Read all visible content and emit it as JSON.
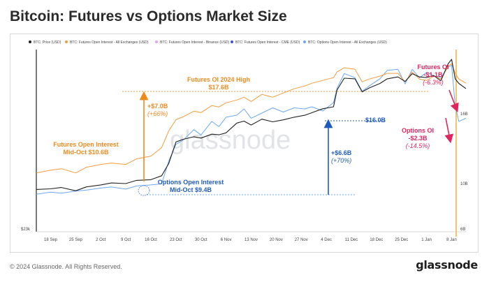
{
  "title": "Bitcoin: Futures vs Options Market Size",
  "footer": "© 2024 Glassnode. All Rights Reserved.",
  "logo_text": "glassnode",
  "watermark": "glassnode",
  "colors": {
    "price": "#222222",
    "futures_oi": "#f39c3c",
    "futures_binance": "#d9a8f0",
    "futures_cme": "#3b4fd6",
    "options_oi": "#6aa8ef",
    "annot_orange": "#ef8a1e",
    "annot_blue": "#1f5bbf",
    "annot_red": "#e0245e",
    "vline": "#f1b13c"
  },
  "chart_data": {
    "type": "line",
    "legend": [
      "BTC: Price (USD)",
      "BTC: Futures Open Interest - All Exchanges (USD)",
      "BTC: Futures Open Interest - Binance (USD)",
      "BTC: Futures Open Interest - CME (USD)",
      "BTC: Options Open Interest - All Exchanges (USD)"
    ],
    "x_ticks": [
      "18 Sep",
      "25 Sep",
      "2 Oct",
      "9 Oct",
      "16 Oct",
      "23 Oct",
      "30 Oct",
      "6 Nov",
      "13 Nov",
      "20 Nov",
      "27 Nov",
      "4 Dec",
      "11 Dec",
      "18 Dec",
      "25 Dec",
      "1 Jan",
      "8 Jan"
    ],
    "y_left_tick": "$23k",
    "y_right_ticks": [
      "16B",
      "10B",
      "6B"
    ],
    "x_start_day": -4,
    "x_end_day": 116,
    "series": [
      {
        "name": "BTC: Price (USD)",
        "color": "#222222",
        "points": [
          [
            -4,
            26.5
          ],
          [
            0,
            26.6
          ],
          [
            3,
            26.8
          ],
          [
            7,
            26.3
          ],
          [
            10,
            26.9
          ],
          [
            14,
            27.2
          ],
          [
            17,
            27.5
          ],
          [
            21,
            27.4
          ],
          [
            24,
            27.9
          ],
          [
            28,
            28.0
          ],
          [
            31,
            28.6
          ],
          [
            33,
            30.5
          ],
          [
            35,
            33.8
          ],
          [
            37,
            34.2
          ],
          [
            40,
            34.6
          ],
          [
            42,
            34.4
          ],
          [
            45,
            35.0
          ],
          [
            47,
            34.9
          ],
          [
            49,
            35.2
          ],
          [
            52,
            36.7
          ],
          [
            54,
            37.0
          ],
          [
            56,
            36.4
          ],
          [
            59,
            37.3
          ],
          [
            62,
            36.9
          ],
          [
            65,
            37.2
          ],
          [
            68,
            37.6
          ],
          [
            71,
            37.9
          ],
          [
            73,
            38.3
          ],
          [
            76,
            38.9
          ],
          [
            79,
            39.2
          ],
          [
            80,
            41.8
          ],
          [
            82,
            43.6
          ],
          [
            85,
            43.5
          ],
          [
            87,
            41.5
          ],
          [
            89,
            42.1
          ],
          [
            92,
            42.8
          ],
          [
            94,
            43.5
          ],
          [
            97,
            43.8
          ],
          [
            99,
            43.1
          ],
          [
            101,
            44.3
          ],
          [
            103,
            43.8
          ],
          [
            105,
            43.7
          ],
          [
            107,
            44.0
          ],
          [
            109,
            43.2
          ],
          [
            111,
            45.8
          ],
          [
            112,
            46.5
          ],
          [
            113,
            43.5
          ],
          [
            114,
            42.8
          ],
          [
            116,
            42.0
          ]
        ]
      },
      {
        "name": "BTC: Futures Open Interest - All Exchanges (USD)",
        "color": "#f39c3c",
        "points": [
          [
            -4,
            10.2
          ],
          [
            0,
            10.4
          ],
          [
            3,
            10.5
          ],
          [
            7,
            10.2
          ],
          [
            10,
            10.6
          ],
          [
            14,
            10.8
          ],
          [
            17,
            10.9
          ],
          [
            21,
            10.8
          ],
          [
            24,
            11.2
          ],
          [
            28,
            11.4
          ],
          [
            31,
            12.0
          ],
          [
            33,
            13.2
          ],
          [
            35,
            14.0
          ],
          [
            37,
            14.2
          ],
          [
            40,
            14.6
          ],
          [
            42,
            14.5
          ],
          [
            45,
            15.0
          ],
          [
            47,
            14.9
          ],
          [
            49,
            15.2
          ],
          [
            52,
            15.4
          ],
          [
            54,
            15.6
          ],
          [
            56,
            15.3
          ],
          [
            59,
            15.8
          ],
          [
            62,
            15.6
          ],
          [
            65,
            15.9
          ],
          [
            68,
            16.2
          ],
          [
            71,
            16.4
          ],
          [
            73,
            16.6
          ],
          [
            76,
            16.8
          ],
          [
            79,
            17.0
          ],
          [
            80,
            17.4
          ],
          [
            82,
            17.7
          ],
          [
            85,
            17.6
          ],
          [
            87,
            16.7
          ],
          [
            89,
            16.9
          ],
          [
            92,
            17.1
          ],
          [
            94,
            17.3
          ],
          [
            97,
            17.3
          ],
          [
            99,
            16.7
          ],
          [
            101,
            17.4
          ],
          [
            103,
            16.9
          ],
          [
            105,
            16.8
          ],
          [
            107,
            17.1
          ],
          [
            109,
            16.9
          ],
          [
            111,
            17.8
          ],
          [
            112,
            18.0
          ],
          [
            113,
            17.3
          ],
          [
            114,
            16.9
          ],
          [
            116,
            16.6
          ]
        ]
      },
      {
        "name": "BTC: Options Open Interest - All Exchanges (USD)",
        "color": "#6aa8ef",
        "points": [
          [
            -4,
            8.6
          ],
          [
            0,
            8.8
          ],
          [
            3,
            8.7
          ],
          [
            7,
            8.9
          ],
          [
            10,
            9.0
          ],
          [
            14,
            9.2
          ],
          [
            17,
            9.3
          ],
          [
            21,
            9.1
          ],
          [
            24,
            9.4
          ],
          [
            28,
            9.5
          ],
          [
            31,
            9.6
          ],
          [
            33,
            11.8
          ],
          [
            35,
            13.4
          ],
          [
            37,
            13.8
          ],
          [
            40,
            14.8
          ],
          [
            42,
            14.3
          ],
          [
            45,
            15.6
          ],
          [
            47,
            15.1
          ],
          [
            49,
            16.0
          ],
          [
            52,
            16.2
          ],
          [
            54,
            16.8
          ],
          [
            56,
            15.9
          ],
          [
            59,
            16.4
          ],
          [
            62,
            16.9
          ],
          [
            65,
            16.5
          ],
          [
            68,
            16.9
          ],
          [
            71,
            16.8
          ],
          [
            73,
            17.0
          ],
          [
            76,
            16.6
          ],
          [
            79,
            17.4
          ],
          [
            80,
            18.8
          ],
          [
            82,
            20.2
          ],
          [
            85,
            19.8
          ],
          [
            87,
            18.5
          ],
          [
            89,
            19.0
          ],
          [
            92,
            19.7
          ],
          [
            94,
            20.5
          ],
          [
            97,
            20.6
          ],
          [
            99,
            19.2
          ],
          [
            101,
            20.6
          ],
          [
            103,
            19.8
          ],
          [
            105,
            20.3
          ],
          [
            107,
            20.0
          ],
          [
            109,
            19.8
          ],
          [
            111,
            20.8
          ],
          [
            112,
            21.0
          ],
          [
            113,
            17.1
          ],
          [
            114,
            15.6
          ],
          [
            116,
            15.9
          ]
        ]
      }
    ],
    "annotations": [
      {
        "id": "futures_high",
        "lines": [
          "Futures OI 2024 High",
          "$17.6B"
        ],
        "color": "#ef8a1e"
      },
      {
        "id": "futures_change",
        "lines": [
          "+$7.0B",
          "(+66%)"
        ],
        "color": "#ef8a1e"
      },
      {
        "id": "futures_midoct",
        "lines": [
          "Futures Open Interest",
          "Mid-Oct $10.6B"
        ],
        "color": "#ef8a1e"
      },
      {
        "id": "options_midoct",
        "lines": [
          "Options Open Interest",
          "Mid-Oct $9.4B"
        ],
        "color": "#1f5bbf"
      },
      {
        "id": "options_change",
        "lines": [
          "+$6.6B",
          "(+70%)"
        ],
        "color": "#1f5bbf"
      },
      {
        "id": "options_level",
        "lines": [
          "$16.0B"
        ],
        "color": "#1f5bbf"
      },
      {
        "id": "futures_drop",
        "lines": [
          "Futures OI",
          "-$1.1B",
          "(-6.3%)"
        ],
        "color": "#e0245e"
      },
      {
        "id": "options_drop",
        "lines": [
          "Options OI",
          "-$2.3B",
          "(-14.5%)"
        ],
        "color": "#e0245e"
      }
    ]
  }
}
